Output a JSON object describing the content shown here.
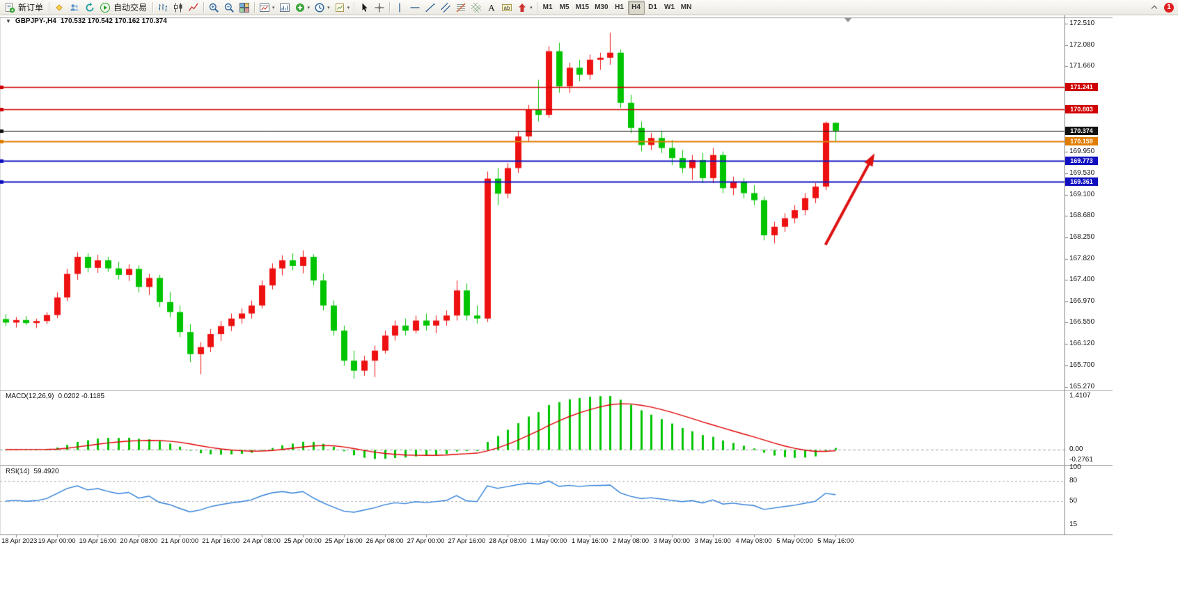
{
  "toolbar": {
    "timeframes": [
      "M1",
      "M5",
      "M15",
      "M30",
      "H1",
      "H4",
      "D1",
      "W1",
      "MN"
    ],
    "active_timeframe": "H4",
    "items": [
      {
        "icon": "new-order-icon",
        "label": "新订单"
      },
      {
        "sep": true
      },
      {
        "icon": "favorites-icon"
      },
      {
        "icon": "accounts-icon"
      },
      {
        "icon": "refresh-icon"
      },
      {
        "icon": "autotrade-icon",
        "label": "自动交易"
      },
      {
        "sep": true
      },
      {
        "icon": "bar-chart-icon"
      },
      {
        "icon": "candlestick-chart-icon"
      },
      {
        "icon": "line-chart-icon"
      },
      {
        "sep": true
      },
      {
        "icon": "zoom-in-icon"
      },
      {
        "icon": "zoom-out-icon"
      },
      {
        "icon": "tile-windows-icon"
      },
      {
        "sep": true
      },
      {
        "icon": "chart-window-icon",
        "dropdown": true
      },
      {
        "icon": "chart-objects-icon"
      },
      {
        "icon": "add-indicator-icon",
        "dropdown": true
      },
      {
        "icon": "periods-icon",
        "dropdown": true
      },
      {
        "icon": "templates-icon",
        "dropdown": true
      },
      {
        "sep": true
      },
      {
        "icon": "cursor-icon"
      },
      {
        "icon": "crosshair-icon"
      },
      {
        "sep": true
      },
      {
        "icon": "vertical-line-icon"
      },
      {
        "icon": "horizontal-line-icon"
      },
      {
        "icon": "trendline-icon"
      },
      {
        "icon": "channel-icon"
      },
      {
        "icon": "fibonacci-icon"
      },
      {
        "icon": "gann-grid-icon"
      },
      {
        "icon": "text-icon"
      },
      {
        "icon": "text-label-icon"
      },
      {
        "icon": "arrows-icon",
        "dropdown": true
      },
      {
        "sep": true
      },
      {
        "timeframes": true
      },
      {
        "spacer": true
      },
      {
        "icon": "collapse-toolbar-icon"
      },
      {
        "icon": "notifications-icon",
        "badge": "1"
      }
    ]
  },
  "main_chart": {
    "collapse_glyph": "▼",
    "symbol_title": "GBPJPY-,H4",
    "ohlc": "170.532 170.542 170.162 170.374"
  },
  "macd_panel": {
    "title": "MACD(12,26,9)",
    "values": "0.0202 -0.1185",
    "axis_labels": [
      "1.4107",
      "0.00",
      "-0.2761"
    ]
  },
  "rsi_panel": {
    "title": "RSI(14)",
    "value": "59.4920",
    "axis_labels": [
      "100",
      "80",
      "50",
      "15"
    ]
  },
  "levels": [
    {
      "label": "171.241",
      "price": 171.241,
      "color": "#d00000",
      "role": "resistance"
    },
    {
      "label": "170.803",
      "price": 170.803,
      "color": "#d00000",
      "role": "resistance"
    },
    {
      "label": "170.374",
      "price": 170.374,
      "color": "#111111",
      "role": "current-price"
    },
    {
      "label": "170.159",
      "price": 170.159,
      "color": "#e07d00",
      "role": "pivot"
    },
    {
      "label": "169.773",
      "price": 169.773,
      "color": "#1010c0",
      "role": "support"
    },
    {
      "label": "169.361",
      "price": 169.361,
      "color": "#1010c0",
      "role": "support"
    }
  ],
  "chart_data": {
    "type": "candlestick",
    "symbol": "GBPJPY-",
    "period": "H4",
    "ylim": [
      165.27,
      172.51
    ],
    "price_ticks": [
      "172.510",
      "172.080",
      "171.660",
      "171.240",
      "170.820",
      "170.390",
      "169.950",
      "169.530",
      "169.100",
      "168.680",
      "168.250",
      "167.820",
      "167.400",
      "166.970",
      "166.550",
      "166.120",
      "165.700",
      "165.270"
    ],
    "x_labels": [
      "18 Apr 2023",
      "19 Apr 00:00",
      "19 Apr 16:00",
      "20 Apr 08:00",
      "21 Apr 00:00",
      "21 Apr 16:00",
      "24 Apr 08:00",
      "25 Apr 00:00",
      "25 Apr 16:00",
      "26 Apr 08:00",
      "27 Apr 00:00",
      "27 Apr 16:00",
      "28 Apr 08:00",
      "1 May 00:00",
      "1 May 16:00",
      "2 May 08:00",
      "3 May 00:00",
      "3 May 16:00",
      "4 May 08:00",
      "5 May 00:00",
      "5 May 16:00"
    ],
    "x_label_start_index": 1,
    "x_label_step": 4,
    "colors": {
      "bull": "#ee1111",
      "bear": "#00c400",
      "macd_histogram": "#00c400",
      "macd_signal": "#e00000",
      "rsi_line": "#2f7ed8"
    },
    "candles": [
      [
        166.62,
        166.72,
        166.48,
        166.55
      ],
      [
        166.55,
        166.66,
        166.45,
        166.6
      ],
      [
        166.6,
        166.68,
        166.5,
        166.54
      ],
      [
        166.54,
        166.63,
        166.44,
        166.58
      ],
      [
        166.58,
        166.76,
        166.52,
        166.7
      ],
      [
        166.7,
        167.15,
        166.64,
        167.05
      ],
      [
        167.05,
        167.62,
        166.98,
        167.52
      ],
      [
        167.52,
        167.95,
        167.4,
        167.86
      ],
      [
        167.86,
        167.93,
        167.55,
        167.64
      ],
      [
        167.64,
        167.9,
        167.54,
        167.79
      ],
      [
        167.79,
        167.86,
        167.56,
        167.63
      ],
      [
        167.63,
        167.76,
        167.41,
        167.5
      ],
      [
        167.5,
        167.71,
        167.38,
        167.62
      ],
      [
        167.62,
        167.69,
        167.15,
        167.26
      ],
      [
        167.26,
        167.52,
        167.1,
        167.44
      ],
      [
        167.44,
        167.5,
        166.86,
        166.96
      ],
      [
        166.96,
        167.16,
        166.66,
        166.76
      ],
      [
        166.76,
        166.89,
        166.26,
        166.36
      ],
      [
        166.36,
        166.52,
        165.76,
        165.92
      ],
      [
        165.92,
        166.16,
        165.52,
        166.06
      ],
      [
        166.06,
        166.42,
        165.96,
        166.32
      ],
      [
        166.32,
        166.58,
        166.18,
        166.48
      ],
      [
        166.48,
        166.73,
        166.38,
        166.63
      ],
      [
        166.63,
        166.83,
        166.53,
        166.73
      ],
      [
        166.73,
        166.99,
        166.63,
        166.89
      ],
      [
        166.89,
        167.39,
        166.83,
        167.29
      ],
      [
        167.29,
        167.73,
        167.21,
        167.63
      ],
      [
        167.63,
        167.89,
        167.49,
        167.79
      ],
      [
        167.79,
        167.93,
        167.59,
        167.68
      ],
      [
        167.68,
        167.99,
        167.53,
        167.86
      ],
      [
        167.86,
        167.91,
        167.29,
        167.39
      ],
      [
        167.39,
        167.53,
        166.79,
        166.89
      ],
      [
        166.89,
        166.99,
        166.29,
        166.39
      ],
      [
        166.39,
        166.49,
        165.69,
        165.79
      ],
      [
        165.79,
        165.99,
        165.43,
        165.59
      ],
      [
        165.59,
        165.89,
        165.49,
        165.79
      ],
      [
        165.79,
        166.09,
        165.46,
        165.99
      ],
      [
        165.99,
        166.39,
        165.93,
        166.29
      ],
      [
        166.29,
        166.59,
        166.19,
        166.49
      ],
      [
        166.49,
        166.63,
        166.29,
        166.39
      ],
      [
        166.39,
        166.69,
        166.33,
        166.59
      ],
      [
        166.59,
        166.73,
        166.39,
        166.49
      ],
      [
        166.49,
        166.69,
        166.34,
        166.59
      ],
      [
        166.59,
        166.79,
        166.49,
        166.69
      ],
      [
        166.69,
        167.39,
        166.59,
        167.19
      ],
      [
        167.19,
        167.33,
        166.59,
        166.69
      ],
      [
        166.69,
        166.89,
        166.53,
        166.63
      ],
      [
        166.63,
        169.56,
        166.56,
        169.42
      ],
      [
        169.42,
        169.63,
        168.89,
        169.12
      ],
      [
        169.12,
        169.73,
        169.03,
        169.63
      ],
      [
        169.63,
        170.36,
        169.53,
        170.26
      ],
      [
        170.26,
        170.89,
        170.16,
        170.79
      ],
      [
        170.79,
        171.39,
        170.56,
        170.69
      ],
      [
        170.69,
        172.06,
        170.63,
        171.96
      ],
      [
        171.96,
        172.13,
        171.13,
        171.26
      ],
      [
        171.26,
        171.73,
        171.13,
        171.63
      ],
      [
        171.63,
        171.79,
        171.36,
        171.49
      ],
      [
        171.49,
        171.89,
        171.39,
        171.79
      ],
      [
        171.79,
        171.93,
        171.59,
        171.83
      ],
      [
        171.83,
        172.33,
        171.69,
        171.93
      ],
      [
        171.93,
        171.99,
        170.83,
        170.93
      ],
      [
        170.93,
        171.09,
        170.33,
        170.43
      ],
      [
        170.43,
        170.56,
        169.96,
        170.09
      ],
      [
        170.09,
        170.33,
        169.99,
        170.23
      ],
      [
        170.23,
        170.36,
        169.93,
        170.03
      ],
      [
        170.03,
        170.19,
        169.69,
        169.83
      ],
      [
        169.83,
        169.99,
        169.53,
        169.63
      ],
      [
        169.63,
        169.89,
        169.39,
        169.79
      ],
      [
        169.79,
        169.93,
        169.33,
        169.43
      ],
      [
        169.43,
        170.03,
        169.33,
        169.89
      ],
      [
        169.89,
        169.96,
        169.13,
        169.23
      ],
      [
        169.23,
        169.46,
        169.09,
        169.36
      ],
      [
        169.36,
        169.43,
        169.03,
        169.13
      ],
      [
        169.13,
        169.29,
        168.89,
        168.99
      ],
      [
        168.99,
        169.06,
        168.19,
        168.29
      ],
      [
        168.29,
        168.56,
        168.13,
        168.46
      ],
      [
        168.46,
        168.73,
        168.36,
        168.63
      ],
      [
        168.63,
        168.89,
        168.53,
        168.79
      ],
      [
        168.79,
        169.13,
        168.69,
        169.03
      ],
      [
        169.03,
        169.33,
        168.93,
        169.26
      ],
      [
        169.26,
        170.56,
        169.19,
        170.53
      ],
      [
        170.532,
        170.542,
        170.162,
        170.374
      ]
    ],
    "indicators": {
      "macd": {
        "fast": 12,
        "slow": 26,
        "signal": 9,
        "display_main": 0.0202,
        "display_signal": -0.1185,
        "axis_max": 1.4107,
        "axis_min": -0.2761
      },
      "rsi": {
        "period": 14,
        "display_value": 59.492,
        "levels": [
          80,
          50
        ]
      }
    },
    "annotations": [
      {
        "type": "arrow",
        "color": "#dd1111",
        "from": {
          "bar": 80,
          "price": 168.1
        },
        "to": {
          "bar": 84.6,
          "price": 169.85
        }
      }
    ]
  }
}
